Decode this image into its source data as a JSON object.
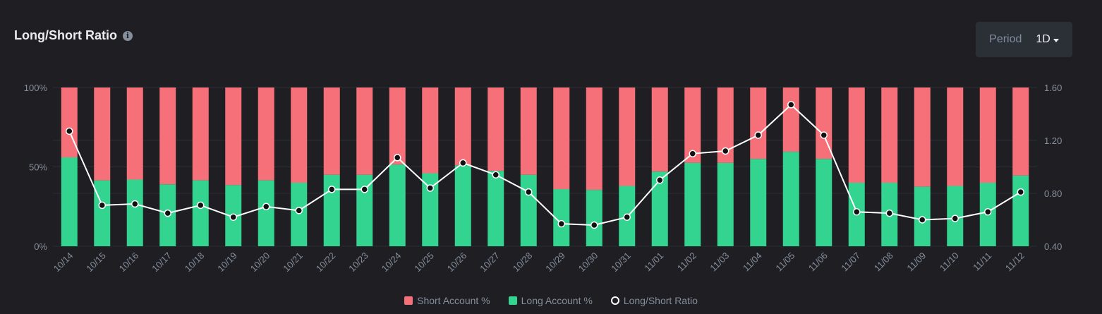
{
  "header": {
    "title": "Long/Short Ratio",
    "info_icon": "info-icon"
  },
  "period": {
    "label": "Period",
    "value": "1D",
    "icon": "chevron-down-icon"
  },
  "colors": {
    "short": "#f6707a",
    "long": "#33d48f",
    "ratio": "#ffffff",
    "grid": "#2b2f36",
    "background": "#1e1e23"
  },
  "chart_data": {
    "type": "bar",
    "categories": [
      "10/14",
      "10/15",
      "10/16",
      "10/17",
      "10/18",
      "10/19",
      "10/20",
      "10/21",
      "10/22",
      "10/23",
      "10/24",
      "10/25",
      "10/26",
      "10/27",
      "10/28",
      "10/29",
      "10/30",
      "10/31",
      "11/01",
      "11/02",
      "11/03",
      "11/04",
      "11/05",
      "11/06",
      "11/07",
      "11/08",
      "11/09",
      "11/10",
      "11/11",
      "11/12"
    ],
    "series": [
      {
        "name": "Short Account %",
        "values": [
          44,
          58.5,
          58,
          61,
          58.5,
          61.5,
          58.5,
          60,
          55,
          55,
          48.5,
          54,
          49,
          52.5,
          55,
          64,
          64.5,
          62,
          53,
          47.5,
          47.5,
          45,
          40.5,
          45,
          60,
          60,
          62.5,
          62,
          60,
          55.5
        ]
      },
      {
        "name": "Long Account %",
        "values": [
          56,
          41.5,
          42,
          39,
          41.5,
          38.5,
          41.5,
          40,
          45,
          45,
          51.5,
          46,
          51,
          47.5,
          45,
          36,
          35.5,
          38,
          47,
          52.5,
          52.5,
          55,
          59.5,
          55,
          40,
          40,
          37.5,
          38,
          40,
          44.5
        ]
      },
      {
        "name": "Long/Short Ratio",
        "values": [
          1.27,
          0.71,
          0.72,
          0.65,
          0.71,
          0.62,
          0.7,
          0.67,
          0.83,
          0.83,
          1.07,
          0.84,
          1.03,
          0.94,
          0.81,
          0.57,
          0.56,
          0.62,
          0.9,
          1.1,
          1.12,
          1.24,
          1.47,
          1.24,
          0.66,
          0.65,
          0.6,
          0.61,
          0.66,
          0.81
        ]
      }
    ],
    "y_left": {
      "ticks": [
        "100%",
        "50%",
        "0%"
      ],
      "range": [
        0,
        100
      ]
    },
    "y_right": {
      "ticks": [
        "1.60",
        "1.20",
        "0.80",
        "0.40"
      ],
      "range": [
        0.4,
        1.6
      ]
    },
    "legend_position": "bottom-center",
    "grid": true
  }
}
